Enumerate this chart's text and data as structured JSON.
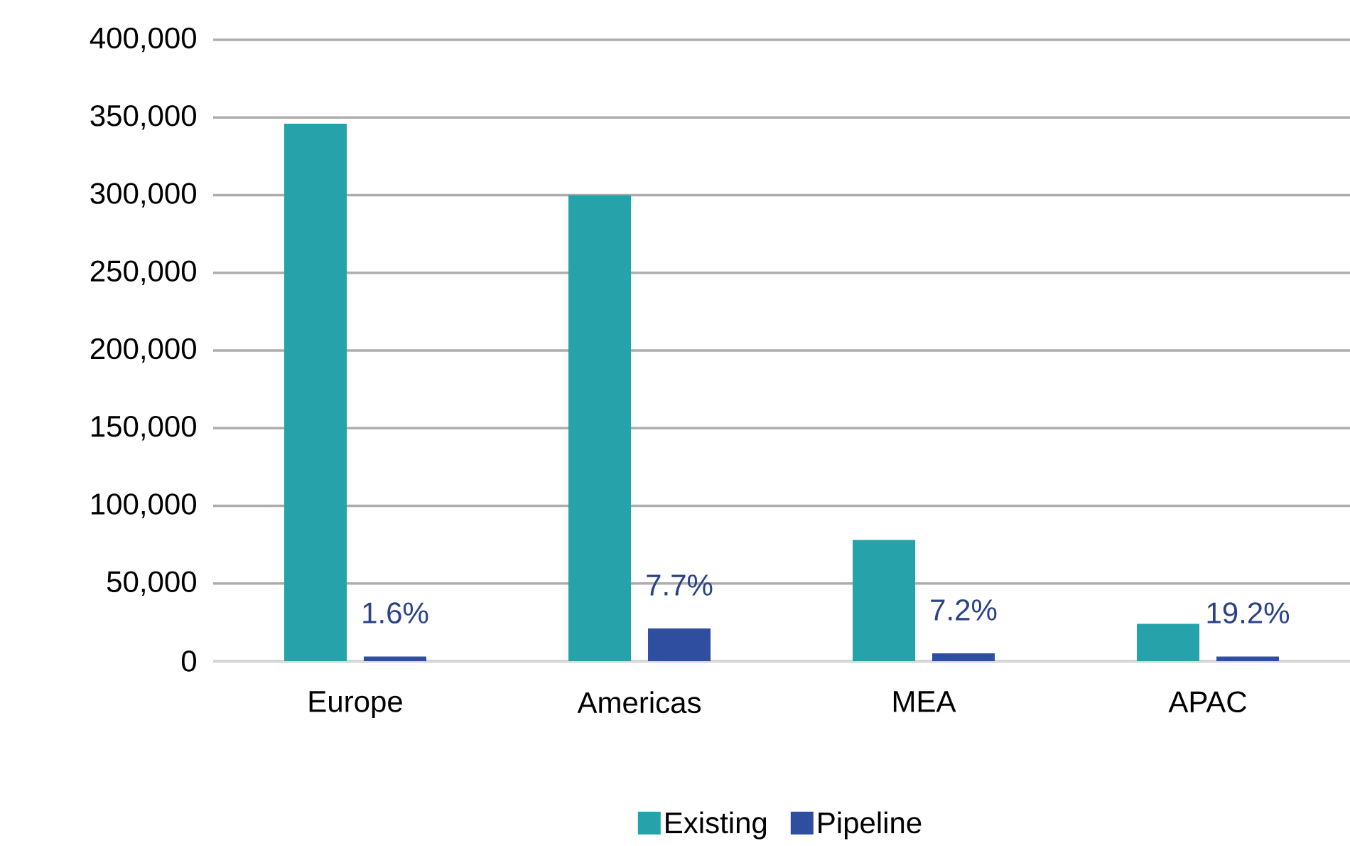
{
  "chart_data": {
    "type": "bar",
    "categories": [
      "Europe",
      "Americas",
      "MEA",
      "APAC"
    ],
    "series": [
      {
        "name": "Existing",
        "color": "#26a3aa",
        "values": [
          346000,
          300000,
          78000,
          24000
        ]
      },
      {
        "name": "Pipeline",
        "color": "#304ea0",
        "values": [
          3000,
          21000,
          5000,
          3000
        ]
      }
    ],
    "annotations": [
      "1.6%",
      "7.7%",
      "7.2%",
      "19.2%"
    ],
    "ylim": [
      0,
      400000
    ],
    "yticks": [
      0,
      {
        "value": 50000,
        "label": "50,000"
      },
      {
        "value": 100000,
        "label": "100,000"
      },
      {
        "value": 150000,
        "label": "150,000"
      },
      {
        "value": 200000,
        "label": "200,000"
      },
      {
        "value": 250000,
        "label": "250,000"
      },
      {
        "value": 300000,
        "label": "300,000"
      },
      {
        "value": 350000,
        "label": "350,000"
      },
      {
        "value": 400000,
        "label": "400,000"
      }
    ],
    "grid": "y",
    "legend": "bottom"
  }
}
